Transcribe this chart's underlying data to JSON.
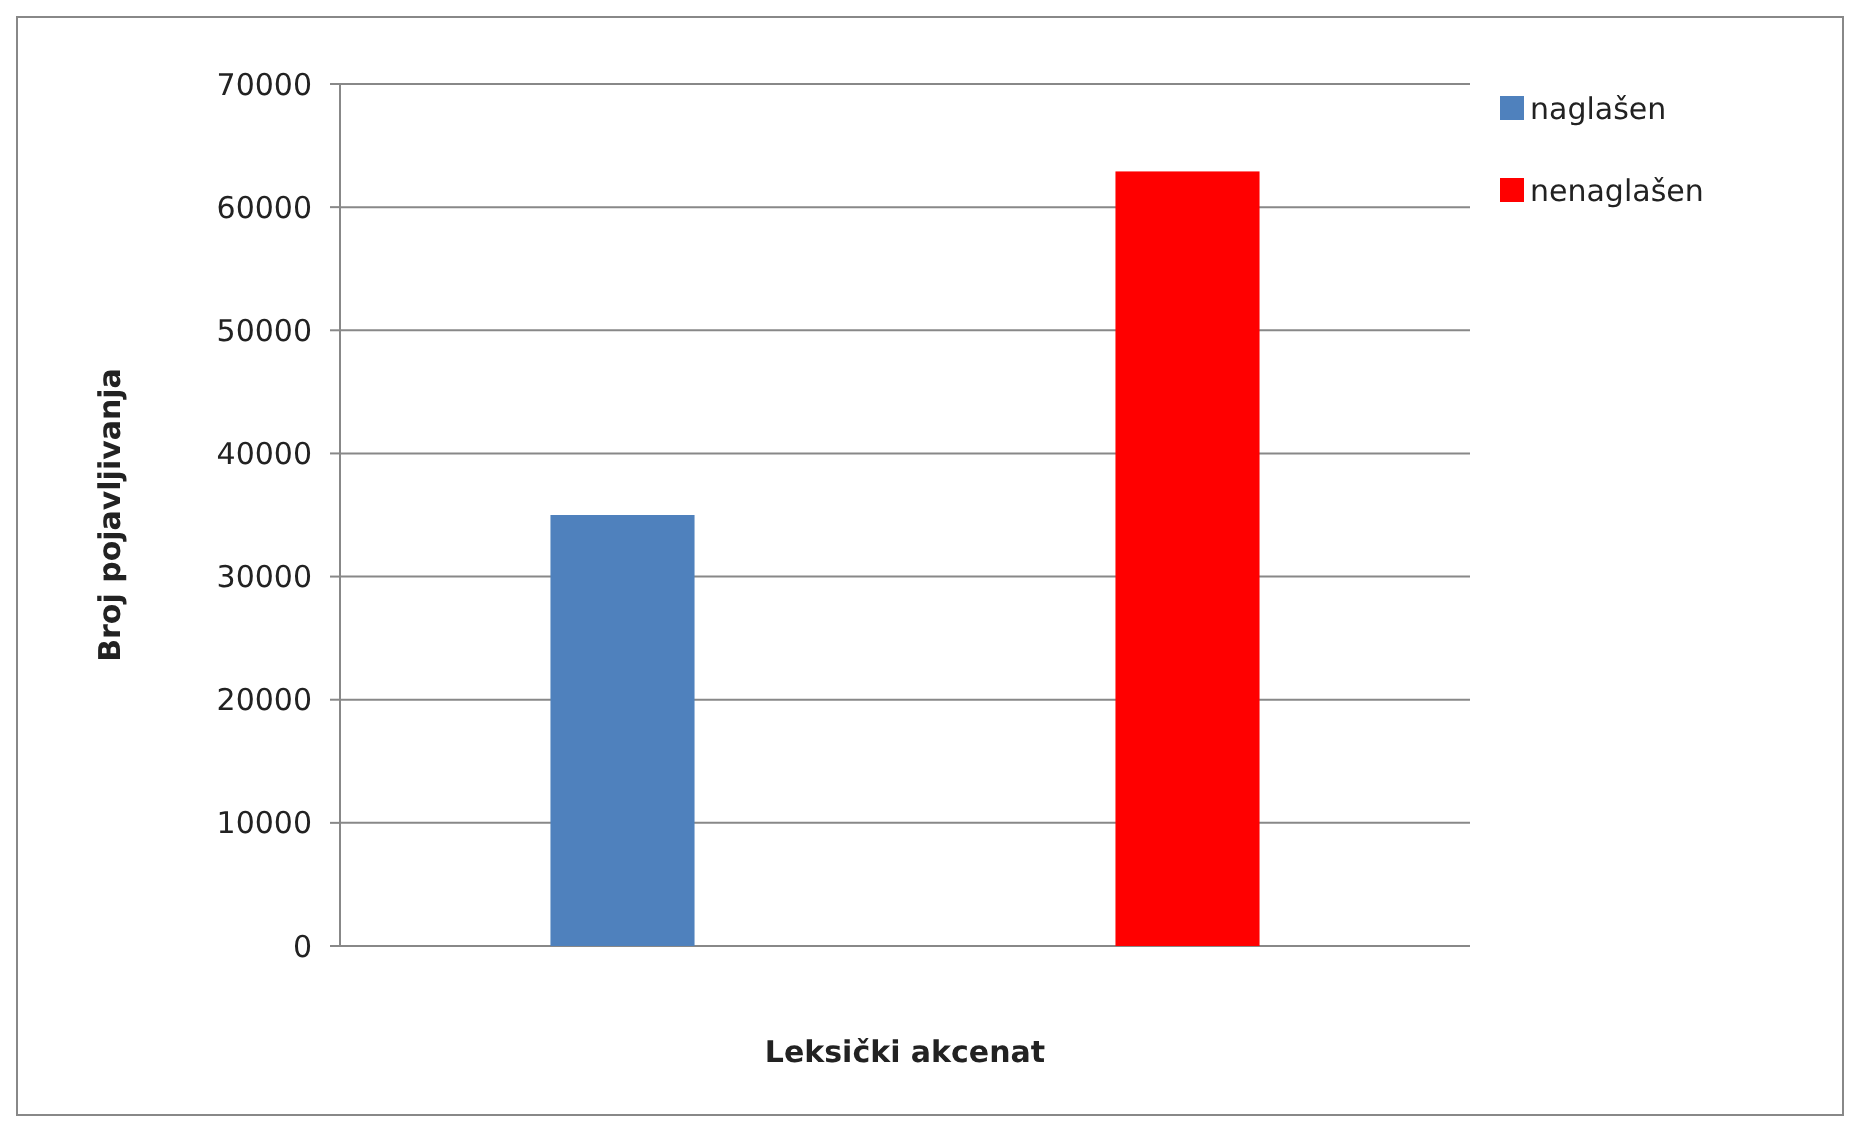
{
  "chart_data": {
    "type": "bar",
    "xlabel": "Leksički akcenat",
    "ylabel": "Broj pojavljivanja",
    "categories": [
      null,
      null
    ],
    "series": [
      {
        "name": "naglašen",
        "color": "#4f81bd",
        "values": [
          35000,
          null
        ]
      },
      {
        "name": "nenaglašen",
        "color": "#ff0000",
        "values": [
          null,
          62900
        ]
      }
    ],
    "ylim": [
      0,
      70000
    ],
    "yticks": [
      0,
      10000,
      20000,
      30000,
      40000,
      50000,
      60000,
      70000
    ],
    "grid": "y",
    "legend": "right"
  }
}
